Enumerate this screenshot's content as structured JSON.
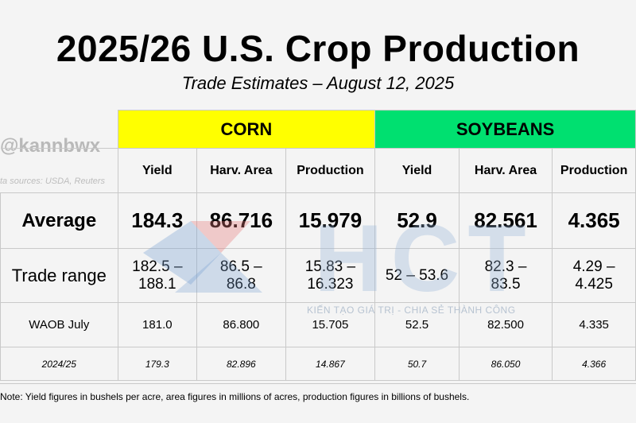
{
  "header": {
    "title": "2025/26 U.S. Crop Production",
    "subtitle": "Trade Estimates – August 12, 2025"
  },
  "attribution": {
    "handle": "@kannbwx",
    "sources": "ta sources: USDA, Reuters"
  },
  "watermark": {
    "letters": "HCT",
    "slogan": "KIẾN TẠO GIÁ TRỊ - CHIA SẺ THÀNH CÔNG"
  },
  "table": {
    "groups": [
      "CORN",
      "SOYBEANS"
    ],
    "columns": [
      "Yield",
      "Harv. Area",
      "Production",
      "Yield",
      "Harv. Area",
      "Production"
    ],
    "rows": [
      {
        "label": "Average",
        "values": [
          "184.3",
          "86.716",
          "15.979",
          "52.9",
          "82.561",
          "4.365"
        ]
      },
      {
        "label": "Trade range",
        "values": [
          [
            "182.5 –",
            "188.1"
          ],
          [
            "86.5 –",
            "86.8"
          ],
          [
            "15.83 –",
            "16.323"
          ],
          [
            "52 – 53.6"
          ],
          [
            "82.3 –",
            "83.5"
          ],
          [
            "4.29 –",
            "4.425"
          ]
        ]
      },
      {
        "label": "WAOB July",
        "values": [
          "181.0",
          "86.800",
          "15.705",
          "52.5",
          "82.500",
          "4.335"
        ]
      },
      {
        "label": "2024/25",
        "values": [
          "179.3",
          "82.896",
          "14.867",
          "50.7",
          "86.050",
          "4.366"
        ]
      }
    ]
  },
  "note": "Note: Yield figures in bushels per acre, area figures in millions of acres, production figures in billions of bushels.",
  "colors": {
    "corn_band": "#ffff00",
    "soybeans_band": "#00e070",
    "grid": "#c9c9c9"
  }
}
